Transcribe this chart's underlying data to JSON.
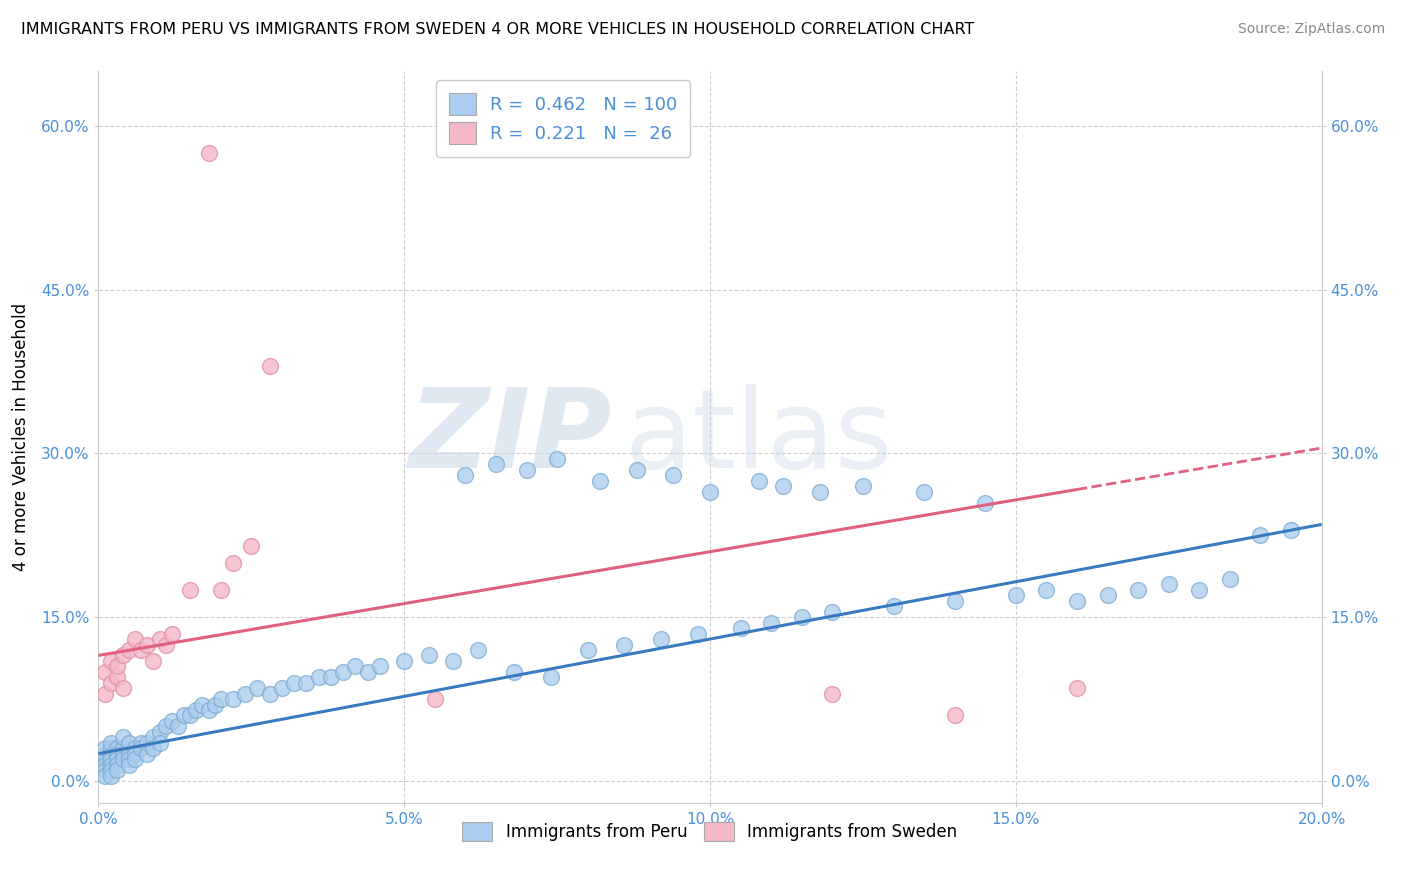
{
  "title": "IMMIGRANTS FROM PERU VS IMMIGRANTS FROM SWEDEN 4 OR MORE VEHICLES IN HOUSEHOLD CORRELATION CHART",
  "source": "Source: ZipAtlas.com",
  "ylabel": "4 or more Vehicles in Household",
  "xlim": [
    0.0,
    0.2
  ],
  "ylim": [
    -0.02,
    0.65
  ],
  "xticks": [
    0.0,
    0.05,
    0.1,
    0.15,
    0.2
  ],
  "xtick_labels": [
    "0.0%",
    "5.0%",
    "10.0%",
    "15.0%",
    "20.0%"
  ],
  "yticks": [
    0.0,
    0.15,
    0.3,
    0.45,
    0.6
  ],
  "ytick_labels": [
    "0.0%",
    "15.0%",
    "30.0%",
    "45.0%",
    "60.0%"
  ],
  "peru_R": 0.462,
  "peru_N": 100,
  "sweden_R": 0.221,
  "sweden_N": 26,
  "peru_color": "#aaccee",
  "sweden_color": "#f5b8c8",
  "peru_line_color": "#3a7abf",
  "sweden_line_color": "#e06080",
  "watermark_zip": "ZIP",
  "watermark_atlas": "atlas",
  "legend_peru_label": "Immigrants from Peru",
  "legend_sweden_label": "Immigrants from Sweden",
  "background_color": "#ffffff",
  "grid_color": "#bbbbbb",
  "peru_x": [
    0.001,
    0.001,
    0.001,
    0.001,
    0.001,
    0.001,
    0.002,
    0.002,
    0.002,
    0.002,
    0.002,
    0.002,
    0.002,
    0.003,
    0.003,
    0.003,
    0.003,
    0.003,
    0.004,
    0.004,
    0.004,
    0.004,
    0.005,
    0.005,
    0.005,
    0.005,
    0.006,
    0.006,
    0.006,
    0.007,
    0.007,
    0.008,
    0.008,
    0.009,
    0.009,
    0.01,
    0.01,
    0.011,
    0.012,
    0.013,
    0.014,
    0.015,
    0.016,
    0.017,
    0.018,
    0.019,
    0.02,
    0.022,
    0.024,
    0.026,
    0.028,
    0.03,
    0.032,
    0.034,
    0.036,
    0.038,
    0.04,
    0.042,
    0.044,
    0.046,
    0.05,
    0.054,
    0.058,
    0.062,
    0.068,
    0.074,
    0.08,
    0.086,
    0.092,
    0.098,
    0.105,
    0.11,
    0.115,
    0.12,
    0.13,
    0.14,
    0.15,
    0.155,
    0.16,
    0.165,
    0.17,
    0.175,
    0.18,
    0.185,
    0.06,
    0.065,
    0.07,
    0.075,
    0.082,
    0.088,
    0.094,
    0.1,
    0.108,
    0.112,
    0.118,
    0.125,
    0.135,
    0.145,
    0.19,
    0.195
  ],
  "peru_y": [
    0.02,
    0.025,
    0.03,
    0.015,
    0.01,
    0.005,
    0.025,
    0.03,
    0.02,
    0.015,
    0.01,
    0.035,
    0.005,
    0.03,
    0.025,
    0.02,
    0.015,
    0.01,
    0.03,
    0.025,
    0.02,
    0.04,
    0.035,
    0.025,
    0.02,
    0.015,
    0.03,
    0.025,
    0.02,
    0.035,
    0.03,
    0.035,
    0.025,
    0.04,
    0.03,
    0.045,
    0.035,
    0.05,
    0.055,
    0.05,
    0.06,
    0.06,
    0.065,
    0.07,
    0.065,
    0.07,
    0.075,
    0.075,
    0.08,
    0.085,
    0.08,
    0.085,
    0.09,
    0.09,
    0.095,
    0.095,
    0.1,
    0.105,
    0.1,
    0.105,
    0.11,
    0.115,
    0.11,
    0.12,
    0.1,
    0.095,
    0.12,
    0.125,
    0.13,
    0.135,
    0.14,
    0.145,
    0.15,
    0.155,
    0.16,
    0.165,
    0.17,
    0.175,
    0.165,
    0.17,
    0.175,
    0.18,
    0.175,
    0.185,
    0.28,
    0.29,
    0.285,
    0.295,
    0.275,
    0.285,
    0.28,
    0.265,
    0.275,
    0.27,
    0.265,
    0.27,
    0.265,
    0.255,
    0.225,
    0.23
  ],
  "sweden_x": [
    0.001,
    0.001,
    0.002,
    0.002,
    0.003,
    0.003,
    0.004,
    0.004,
    0.005,
    0.006,
    0.007,
    0.008,
    0.009,
    0.01,
    0.011,
    0.012,
    0.015,
    0.018,
    0.02,
    0.022,
    0.025,
    0.028,
    0.14,
    0.16,
    0.12,
    0.055
  ],
  "sweden_y": [
    0.08,
    0.1,
    0.09,
    0.11,
    0.095,
    0.105,
    0.085,
    0.115,
    0.12,
    0.13,
    0.12,
    0.125,
    0.11,
    0.13,
    0.125,
    0.135,
    0.175,
    0.575,
    0.175,
    0.2,
    0.215,
    0.38,
    0.06,
    0.085,
    0.08,
    0.075
  ],
  "peru_line_x0": 0.0,
  "peru_line_y0": 0.025,
  "peru_line_x1": 0.2,
  "peru_line_y1": 0.235,
  "sweden_line_x0": 0.0,
  "sweden_line_y0": 0.115,
  "sweden_line_x1": 0.2,
  "sweden_line_y1": 0.305
}
